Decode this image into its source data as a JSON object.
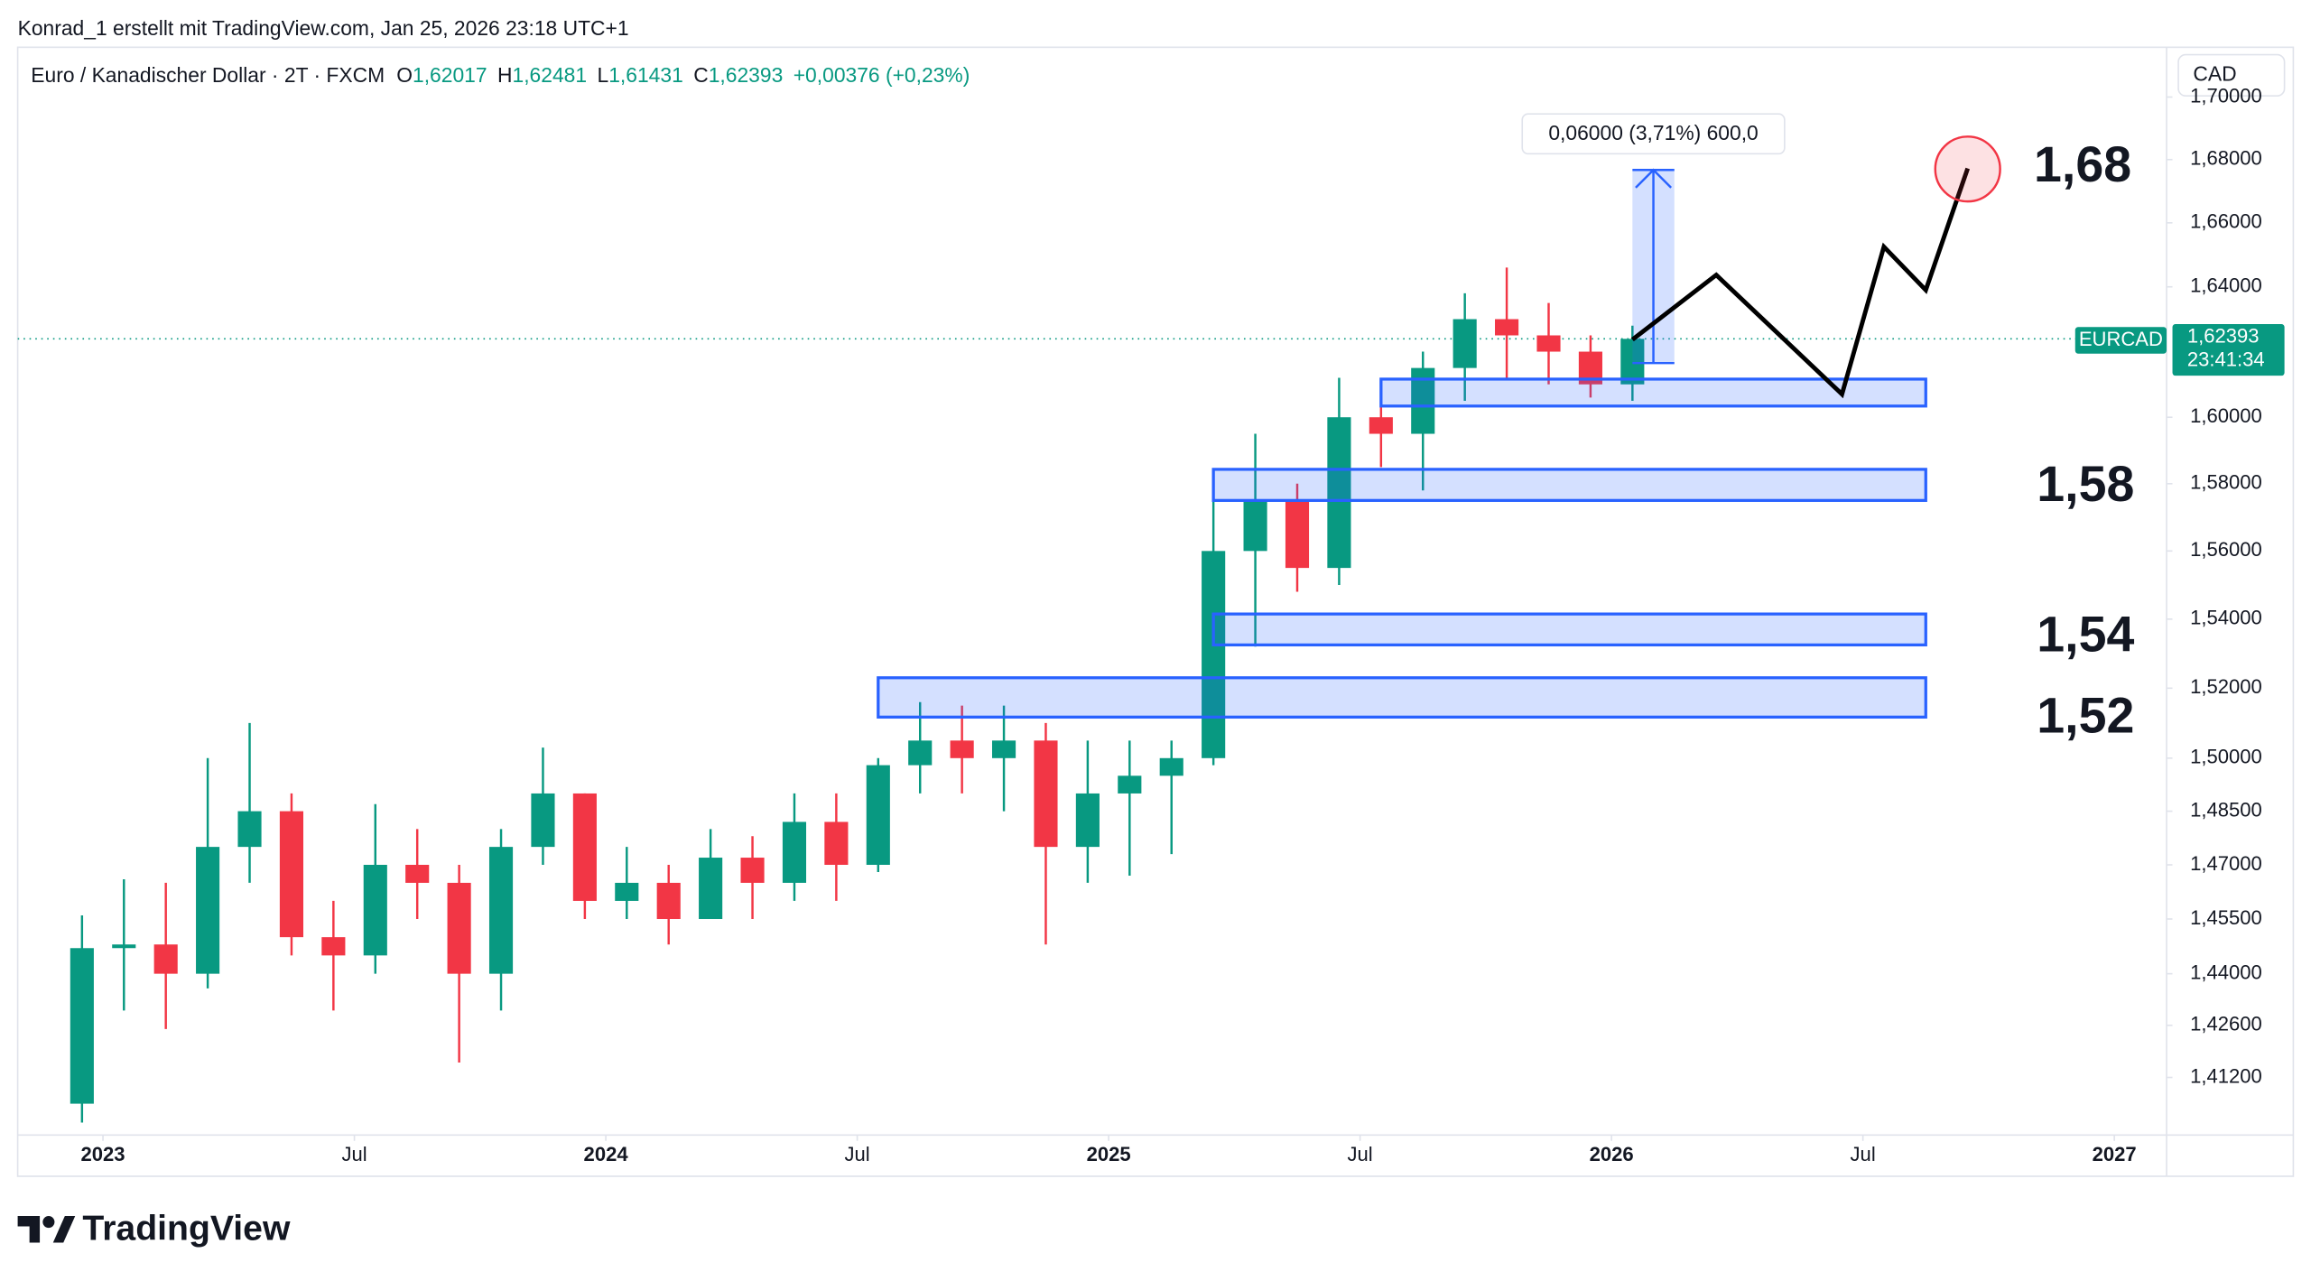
{
  "header": "Konrad_1 erstellt mit TradingView.com, Jan 25, 2026 23:18 UTC+1",
  "brand": "TradingView",
  "chart_data": {
    "type": "candlestick",
    "title": "Euro / Kanadischer Dollar · 2T · FXCM",
    "ohlc": [
      {
        "key": "O",
        "text": "1,62017"
      },
      {
        "key": "H",
        "text": "1,62481"
      },
      {
        "key": "L",
        "text": "1,61431"
      },
      {
        "key": "C",
        "text": "1,62393"
      }
    ],
    "change": "+0,00376 (+0,23%)",
    "currency": "CAD",
    "symbol": "EURCAD",
    "last_price": {
      "value": 1.62393,
      "label": "1,62393"
    },
    "countdown": "23:41:34",
    "up_color": "#089981",
    "down_color": "#f23645",
    "log_scale": true,
    "grid": false,
    "x": [
      "2022-12",
      "2023-01",
      "2023-02",
      "2023-03",
      "2023-04",
      "2023-05",
      "2023-06",
      "2023-07",
      "2023-08",
      "2023-09",
      "2023-10",
      "2023-11",
      "2023-12",
      "2024-01",
      "2024-02",
      "2024-03",
      "2024-04",
      "2024-05",
      "2024-06",
      "2024-07",
      "2024-08",
      "2024-09",
      "2024-10",
      "2024-11",
      "2024-12",
      "2025-01",
      "2025-02",
      "2025-03",
      "2025-04",
      "2025-05",
      "2025-06",
      "2025-07",
      "2025-08",
      "2025-09",
      "2025-10",
      "2025-11",
      "2025-12",
      "2026-01"
    ],
    "open": [
      1.405,
      1.447,
      1.448,
      1.44,
      1.475,
      1.485,
      1.45,
      1.445,
      1.47,
      1.465,
      1.44,
      1.475,
      1.49,
      1.46,
      1.465,
      1.455,
      1.472,
      1.465,
      1.482,
      1.47,
      1.498,
      1.505,
      1.5,
      1.505,
      1.475,
      1.49,
      1.495,
      1.5,
      1.56,
      1.575,
      1.555,
      1.6,
      1.595,
      1.615,
      1.63,
      1.625,
      1.62,
      1.61
    ],
    "high": [
      1.456,
      1.466,
      1.465,
      1.5,
      1.51,
      1.49,
      1.46,
      1.487,
      1.48,
      1.47,
      1.48,
      1.503,
      1.49,
      1.475,
      1.47,
      1.48,
      1.478,
      1.49,
      1.49,
      1.5,
      1.516,
      1.515,
      1.515,
      1.51,
      1.505,
      1.505,
      1.505,
      1.58,
      1.595,
      1.58,
      1.612,
      1.61,
      1.62,
      1.638,
      1.646,
      1.635,
      1.625,
      1.628
    ],
    "low": [
      1.4,
      1.43,
      1.425,
      1.436,
      1.465,
      1.445,
      1.43,
      1.44,
      1.455,
      1.416,
      1.43,
      1.47,
      1.455,
      1.455,
      1.448,
      1.455,
      1.455,
      1.46,
      1.46,
      1.468,
      1.49,
      1.49,
      1.485,
      1.448,
      1.465,
      1.467,
      1.473,
      1.498,
      1.532,
      1.548,
      1.55,
      1.585,
      1.578,
      1.605,
      1.612,
      1.61,
      1.606,
      1.605
    ],
    "close": [
      1.447,
      1.448,
      1.44,
      1.475,
      1.485,
      1.45,
      1.445,
      1.47,
      1.465,
      1.44,
      1.475,
      1.49,
      1.46,
      1.465,
      1.455,
      1.472,
      1.465,
      1.482,
      1.47,
      1.498,
      1.505,
      1.5,
      1.505,
      1.475,
      1.49,
      1.495,
      1.5,
      1.56,
      1.575,
      1.555,
      1.6,
      1.595,
      1.615,
      1.63,
      1.625,
      1.62,
      1.61,
      1.62393
    ],
    "xlim": [
      "2022-11",
      "2027-02"
    ],
    "xticks": [
      {
        "value": "2023-01",
        "label": "2023"
      },
      {
        "value": "2023-07",
        "label": "Jul"
      },
      {
        "value": "2024-01",
        "label": "2024"
      },
      {
        "value": "2024-07",
        "label": "Jul"
      },
      {
        "value": "2025-01",
        "label": "2025"
      },
      {
        "value": "2025-07",
        "label": "Jul"
      },
      {
        "value": "2026-01",
        "label": "2026"
      },
      {
        "value": "2026-07",
        "label": "Jul"
      },
      {
        "value": "2027-01",
        "label": "2027"
      }
    ],
    "ylim": [
      1.3967,
      1.7018
    ],
    "yticks": [
      {
        "value": 1.412,
        "label": "1,41200"
      },
      {
        "value": 1.426,
        "label": "1,42600"
      },
      {
        "value": 1.44,
        "label": "1,44000"
      },
      {
        "value": 1.455,
        "label": "1,45500"
      },
      {
        "value": 1.47,
        "label": "1,47000"
      },
      {
        "value": 1.485,
        "label": "1,48500"
      },
      {
        "value": 1.5,
        "label": "1,50000"
      },
      {
        "value": 1.52,
        "label": "1,52000"
      },
      {
        "value": 1.54,
        "label": "1,54000"
      },
      {
        "value": 1.56,
        "label": "1,56000"
      },
      {
        "value": 1.58,
        "label": "1,58000"
      },
      {
        "value": 1.6,
        "label": "1,60000"
      },
      {
        "value": 1.64,
        "label": "1,64000"
      },
      {
        "value": 1.66,
        "label": "1,66000"
      },
      {
        "value": 1.68,
        "label": "1,68000"
      },
      {
        "value": 1.7,
        "label": "1,70000"
      }
    ],
    "zones": [
      {
        "x": [
          "2025-07",
          "2026-08"
        ],
        "y": [
          1.6034,
          1.6116
        ]
      },
      {
        "x": [
          "2025-03",
          "2026-08"
        ],
        "y": [
          1.575,
          1.5843
        ]
      },
      {
        "x": [
          "2025-03",
          "2026-08"
        ],
        "y": [
          1.5325,
          1.5415
        ]
      },
      {
        "x": [
          "2024-07",
          "2026-08"
        ],
        "y": [
          1.5117,
          1.523
        ]
      }
    ],
    "measure": {
      "x": [
        "2026-01",
        "2026-02"
      ],
      "y": [
        1.6165,
        1.6767
      ],
      "label": "0,06000 (3,71%) 600,0"
    },
    "projection": {
      "x": [
        "2026-01",
        "2026-03",
        "2026-06",
        "2026-07",
        "2026-08",
        "2026-09"
      ],
      "y": [
        1.6237,
        1.6437,
        1.607,
        1.6525,
        1.639,
        1.6772
      ]
    },
    "target": {
      "x": "2026-09",
      "y": 1.677
    },
    "level_labels": [
      "1,68",
      "1,58",
      "1,54",
      "1,52"
    ]
  }
}
